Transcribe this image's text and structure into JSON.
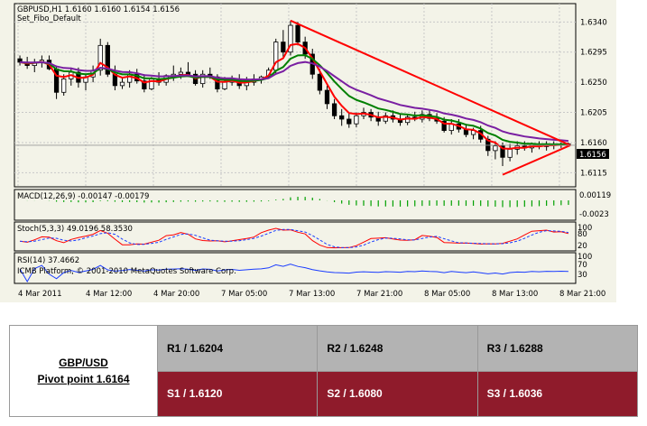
{
  "chart_data": {
    "type": "candlestick",
    "symbol_label": "GBPUSD,H1  1.6160 1.6160 1.6154 1.6156",
    "indicator_label": "Set_Fibo_Default",
    "current_price": "1.6156",
    "price_ticks": [
      "1.6340",
      "1.6295",
      "1.6250",
      "1.6205",
      "1.6160",
      "1.6115"
    ],
    "price_tick_values": [
      1.634,
      1.6295,
      1.625,
      1.6205,
      1.616,
      1.6115
    ],
    "ylim": [
      1.6098,
      1.6362
    ],
    "time_ticks": [
      "4 Mar 2011",
      "4 Mar 12:00",
      "4 Mar 20:00",
      "7 Mar 05:00",
      "7 Mar 13:00",
      "7 Mar 21:00",
      "8 Mar 05:00",
      "8 Mar 13:00",
      "8 Mar 21:00"
    ],
    "candles": [
      [
        1.6285,
        1.629,
        1.6275,
        1.628
      ],
      [
        1.628,
        1.6288,
        1.627,
        1.6275
      ],
      [
        1.6275,
        1.6285,
        1.6265,
        1.628
      ],
      [
        1.628,
        1.629,
        1.6272,
        1.6283
      ],
      [
        1.6283,
        1.629,
        1.6268,
        1.627
      ],
      [
        1.627,
        1.6275,
        1.6225,
        1.6235
      ],
      [
        1.6235,
        1.6262,
        1.623,
        1.6255
      ],
      [
        1.6255,
        1.6272,
        1.6245,
        1.6265
      ],
      [
        1.6265,
        1.6272,
        1.6242,
        1.625
      ],
      [
        1.625,
        1.6262,
        1.6238,
        1.6258
      ],
      [
        1.6258,
        1.6275,
        1.625,
        1.6268
      ],
      [
        1.6268,
        1.6315,
        1.626,
        1.6305
      ],
      [
        1.6305,
        1.631,
        1.6258,
        1.6262
      ],
      [
        1.6262,
        1.6275,
        1.6238,
        1.6245
      ],
      [
        1.6245,
        1.6258,
        1.624,
        1.625
      ],
      [
        1.625,
        1.6268,
        1.6242,
        1.6262
      ],
      [
        1.6262,
        1.627,
        1.6248,
        1.6252
      ],
      [
        1.6252,
        1.6262,
        1.6235,
        1.624
      ],
      [
        1.624,
        1.6258,
        1.6238,
        1.6255
      ],
      [
        1.6255,
        1.6265,
        1.6245,
        1.625
      ],
      [
        1.625,
        1.6262,
        1.6245,
        1.626
      ],
      [
        1.626,
        1.6275,
        1.6252,
        1.6262
      ],
      [
        1.6262,
        1.6272,
        1.6255,
        1.6265
      ],
      [
        1.6265,
        1.628,
        1.6258,
        1.6262
      ],
      [
        1.6262,
        1.6268,
        1.6245,
        1.6248
      ],
      [
        1.6248,
        1.6268,
        1.6242,
        1.6262
      ],
      [
        1.6262,
        1.6272,
        1.6255,
        1.6258
      ],
      [
        1.6258,
        1.6262,
        1.6235,
        1.624
      ],
      [
        1.624,
        1.6258,
        1.6238,
        1.625
      ],
      [
        1.625,
        1.626,
        1.6245,
        1.6255
      ],
      [
        1.6255,
        1.6262,
        1.624,
        1.6245
      ],
      [
        1.6245,
        1.6258,
        1.6238,
        1.625
      ],
      [
        1.625,
        1.6262,
        1.6245,
        1.6255
      ],
      [
        1.6255,
        1.626,
        1.6248,
        1.6258
      ],
      [
        1.6258,
        1.6272,
        1.6255,
        1.6268
      ],
      [
        1.6268,
        1.6315,
        1.6262,
        1.631
      ],
      [
        1.631,
        1.6328,
        1.6288,
        1.6295
      ],
      [
        1.6295,
        1.6342,
        1.629,
        1.6335
      ],
      [
        1.6335,
        1.634,
        1.6305,
        1.631
      ],
      [
        1.631,
        1.6318,
        1.6285,
        1.6292
      ],
      [
        1.6292,
        1.63,
        1.6255,
        1.6262
      ],
      [
        1.6262,
        1.627,
        1.6232,
        1.6238
      ],
      [
        1.6238,
        1.6245,
        1.621,
        1.6218
      ],
      [
        1.6218,
        1.6225,
        1.6195,
        1.62
      ],
      [
        1.62,
        1.621,
        1.6185,
        1.6195
      ],
      [
        1.6195,
        1.6205,
        1.6182,
        1.6188
      ],
      [
        1.6188,
        1.6205,
        1.6183,
        1.62
      ],
      [
        1.62,
        1.6212,
        1.6195,
        1.6205
      ],
      [
        1.6205,
        1.621,
        1.6192,
        1.6198
      ],
      [
        1.6198,
        1.6206,
        1.6185,
        1.6192
      ],
      [
        1.6192,
        1.6205,
        1.6188,
        1.62
      ],
      [
        1.62,
        1.6208,
        1.619,
        1.6195
      ],
      [
        1.6195,
        1.6203,
        1.6185,
        1.619
      ],
      [
        1.619,
        1.6202,
        1.6186,
        1.6198
      ],
      [
        1.6198,
        1.6206,
        1.6192,
        1.6195
      ],
      [
        1.6195,
        1.6208,
        1.619,
        1.6202
      ],
      [
        1.6202,
        1.6208,
        1.6192,
        1.6196
      ],
      [
        1.6196,
        1.6204,
        1.6188,
        1.6192
      ],
      [
        1.6192,
        1.6198,
        1.6175,
        1.6178
      ],
      [
        1.6178,
        1.6195,
        1.6172,
        1.6188
      ],
      [
        1.6188,
        1.6195,
        1.6175,
        1.618
      ],
      [
        1.618,
        1.6188,
        1.6168,
        1.6172
      ],
      [
        1.6172,
        1.6182,
        1.6165,
        1.6178
      ],
      [
        1.6178,
        1.6185,
        1.616,
        1.6165
      ],
      [
        1.6165,
        1.617,
        1.614,
        1.6148
      ],
      [
        1.6148,
        1.6162,
        1.6135,
        1.6155
      ],
      [
        1.6155,
        1.616,
        1.6125,
        1.6138
      ],
      [
        1.6138,
        1.6158,
        1.6132,
        1.615
      ],
      [
        1.615,
        1.6162,
        1.6142,
        1.6155
      ],
      [
        1.6155,
        1.6162,
        1.6148,
        1.6152
      ],
      [
        1.6152,
        1.616,
        1.6145,
        1.6158
      ],
      [
        1.6158,
        1.6162,
        1.615,
        1.6154
      ],
      [
        1.6154,
        1.6162,
        1.6148,
        1.6158
      ],
      [
        1.6158,
        1.6162,
        1.615,
        1.6156
      ],
      [
        1.6156,
        1.616,
        1.6152,
        1.6158
      ],
      [
        1.6158,
        1.616,
        1.6154,
        1.6156
      ]
    ],
    "macd_label": "MACD(12,26,9) -0.00147 -0.00179",
    "macd_ticks": [
      "0.00119",
      "-0.0023"
    ],
    "stoch_label": "Stoch(5,3,3) 49.0196 58.3530",
    "stoch_ticks": [
      "100",
      "80",
      "20"
    ],
    "rsi_label": "RSI(14) 37.4662",
    "rsi_ticks": [
      "100",
      "70",
      "30"
    ],
    "copyright": "ICMB Platform, © 2001-2010 MetaQuotes Software Corp.",
    "colors": {
      "bg": "#f3f3e8",
      "red_line": "#ff0000",
      "ma_fast": "#ff0000",
      "ma_mid": "#008000",
      "ma_slow": "#7a1fa2",
      "macd": "#00a000",
      "rsi": "#1a3cff"
    }
  },
  "pivot_table": {
    "pair": "GBP/USD",
    "pivot": "Pivot point 1.6164",
    "resistance": [
      "R1 / 1.6204",
      "R2 / 1.6248",
      "R3 / 1.6288"
    ],
    "support": [
      "S1 / 1.6120",
      "S2 / 1.6080",
      "S3 / 1.6036"
    ]
  }
}
